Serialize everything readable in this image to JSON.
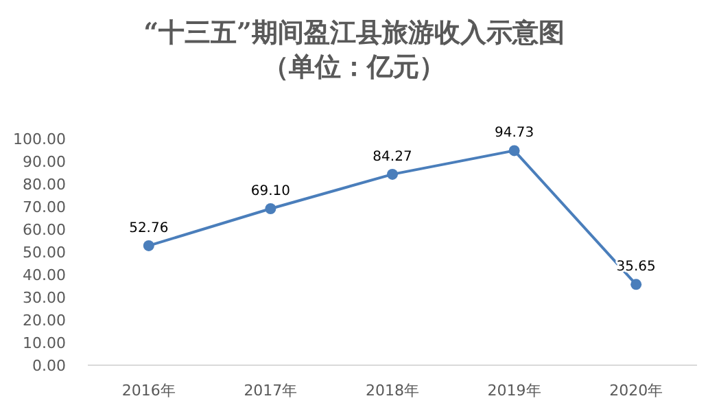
{
  "chart_data": {
    "type": "line",
    "title": "“十三五”期间盈江县旅游收入示意图",
    "subtitle": "（单位：亿元）",
    "categories": [
      "2016年",
      "2017年",
      "2018年",
      "2019年",
      "2020年"
    ],
    "series": [
      {
        "color": "#4a7ebb",
        "values": [
          52.76,
          69.1,
          84.27,
          94.73,
          35.65
        ],
        "value_labels": [
          "52.76",
          "69.10",
          "84.27",
          "94.73",
          "35.65"
        ]
      }
    ],
    "ylim": [
      0,
      100
    ],
    "yticks": [
      {
        "value": 0,
        "label": "0.00"
      },
      {
        "value": 10,
        "label": "10.00"
      },
      {
        "value": 20,
        "label": "20.00"
      },
      {
        "value": 30,
        "label": "30.00"
      },
      {
        "value": 40,
        "label": "40.00"
      },
      {
        "value": 50,
        "label": "50.00"
      },
      {
        "value": 60,
        "label": "60.00"
      },
      {
        "value": 70,
        "label": "70.00"
      },
      {
        "value": 80,
        "label": "80.00"
      },
      {
        "value": 90,
        "label": "90.00"
      },
      {
        "value": 100,
        "label": "100.00"
      }
    ],
    "marker": "circle",
    "line_style": "solid",
    "grid": false
  }
}
